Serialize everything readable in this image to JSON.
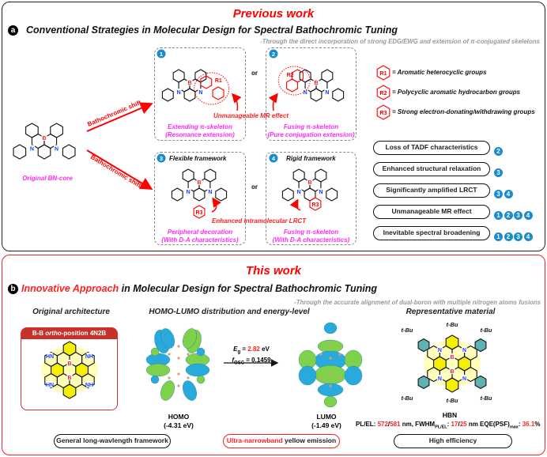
{
  "colors": {
    "red": "#f00",
    "magenta": "#ff2cf0",
    "nitrogen": "#1c3cff",
    "boron": "#f22",
    "badge": "#1a8ccc",
    "homo_blue": "#2aa9dc",
    "homo_green": "#7fd04a",
    "yellow": "#f4f000"
  },
  "panel_a": {
    "headline": "Previous work",
    "badge": "a",
    "title": "Conventional Strategies in Molecular Design for Spectral Bathochromic Tuning",
    "subtitle": "-Through the direct incorporation of strong EDG/EWG and extension of π-conjugated skeletons",
    "core_label": "Original BN-core",
    "arrow_label": "Bathochromic shift",
    "or": "or",
    "atoms": {
      "N": "N",
      "B": "B",
      "R1": "R1",
      "R2": "R2",
      "R3": "R3"
    },
    "strategies": [
      {
        "num": "1",
        "heading": "",
        "line1": "Extending π-skeleton",
        "line2": "(Resonance extension)"
      },
      {
        "num": "2",
        "heading": "",
        "line1": "Fusing π-skeleton",
        "line2": "(Pure conjugation extension)"
      },
      {
        "num": "3",
        "heading": "Flexible framework",
        "line1": "Peripheral decoration",
        "line2": "(With D-A characteristics)"
      },
      {
        "num": "4",
        "heading": "Rigid framework",
        "line1": "Fusing π-skeleton",
        "line2": "(With D-A characteristics)"
      }
    ],
    "mr_effect_note": "Unmanageable  MR effect",
    "lrct_note": "Enhanced intramolecular LRCT",
    "legend": [
      {
        "symbol": "R1",
        "text": "= Aromatic heterocyclic groups"
      },
      {
        "symbol": "R2",
        "text": "= Polycyclic aromatic hydrocarbon groups"
      },
      {
        "symbol": "R3",
        "text": "= Strong electron-donating/withdrawing groups"
      }
    ],
    "drawbacks": [
      {
        "text": "Loss of TADF characteristics",
        "refs": [
          "2"
        ]
      },
      {
        "text": "Enhanced structural relaxation",
        "refs": [
          "3"
        ]
      },
      {
        "text": "Significantly amplified LRCT",
        "refs": [
          "3",
          "4"
        ]
      },
      {
        "text": "Unmanageable  MR effect",
        "refs": [
          "1",
          "2",
          "3",
          "4"
        ]
      },
      {
        "text": "Inevitable spectral broadening",
        "refs": [
          "1",
          "2",
          "3",
          "4"
        ]
      }
    ]
  },
  "panel_b": {
    "headline": "This work",
    "badge": "b",
    "title_highlight": "Innovative Approach",
    "title_rest": " in Molecular Design for Spectral Bathochromic Tuning",
    "subtitle": "-Through the accurate alignment of dual-boron with multiple nitrogen atoms fusions",
    "original": {
      "heading": "Original architecture",
      "box_title_pre": "B-B ",
      "box_title_em": "ortho",
      "box_title_post": "-position 4N2B",
      "NH": "NH",
      "HN": "HN",
      "B": "B"
    },
    "orbitals": {
      "heading": "HOMO-LUMO distribution and energy-level",
      "homo_label": "HOMO",
      "homo_energy": "(-4.31 eV)",
      "lumo_label": "LUMO",
      "lumo_energy": "(-1.49 eV)",
      "eg_label": "E",
      "eg_sub": "g",
      "eg_eq": " = ",
      "eg_value": "2.82",
      "eg_unit": " eV",
      "fosc_label": "f",
      "fosc_sub": "OSC",
      "fosc_eq": " = 0.1459"
    },
    "material": {
      "heading": "Representative material",
      "name": "HBN",
      "tbu": "t-Bu",
      "N": "N",
      "B": "B",
      "pl_label": "PL/EL: ",
      "pl_value": "572",
      "sep": "/",
      "el_value": "581",
      "nm1": " nm, FWHM",
      "fwhm_sub": "PL/EL",
      "colon": ": ",
      "fwhm_pl": "17",
      "fwhm_el": "25",
      "nm2": " nm EQE(PSF)",
      "eqe_sub": "max",
      "eqe_colon": ": ",
      "eqe_value": "36.1",
      "pct": "%"
    },
    "pills": {
      "p1": "General long-wavlength framework",
      "p2_red": "Ultra-narrowband",
      "p2_rest": " yellow emission",
      "p3": "High efficiency"
    }
  }
}
